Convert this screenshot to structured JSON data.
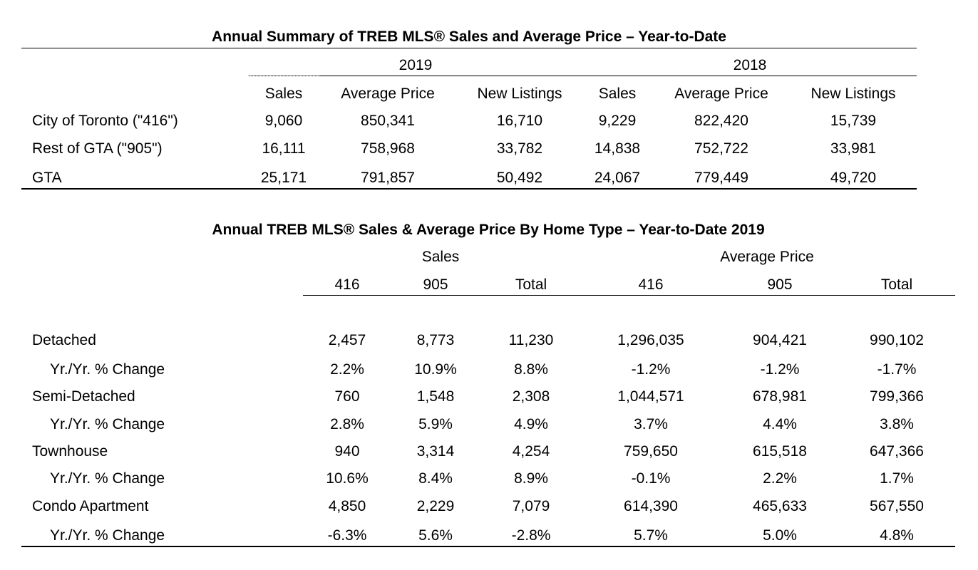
{
  "table1": {
    "title": "Annual Summary of TREB MLS® Sales and Average Price – Year-to-Date",
    "year_headers": [
      "2019",
      "2018"
    ],
    "columns": [
      "Sales",
      "Average Price",
      "New Listings",
      "Sales",
      "Average Price",
      "New Listings"
    ],
    "rows": [
      {
        "label": "City of Toronto (\"416\")",
        "values": [
          "9,060",
          "850,341",
          "16,710",
          "9,229",
          "822,420",
          "15,739"
        ]
      },
      {
        "label": "Rest of GTA (\"905\")",
        "values": [
          "16,111",
          "758,968",
          "33,782",
          "14,838",
          "752,722",
          "33,981"
        ]
      },
      {
        "label": "GTA",
        "values": [
          "25,171",
          "791,857",
          "50,492",
          "24,067",
          "779,449",
          "49,720"
        ]
      }
    ]
  },
  "table2": {
    "title": "Annual TREB MLS® Sales & Average Price  By Home Type – Year-to-Date 2019",
    "group_headers": [
      "Sales",
      "Average Price"
    ],
    "columns": [
      "416",
      "905",
      "Total",
      "416",
      "905",
      "Total"
    ],
    "rows": [
      {
        "label": "Detached",
        "values": [
          "2,457",
          "8,773",
          "11,230",
          "1,296,035",
          "904,421",
          "990,102"
        ]
      },
      {
        "label": "Yr./Yr. % Change",
        "values": [
          "2.2%",
          "10.9%",
          "8.8%",
          "-1.2%",
          "-1.2%",
          "-1.7%"
        ]
      },
      {
        "label": "Semi-Detached",
        "values": [
          "760",
          "1,548",
          "2,308",
          "1,044,571",
          "678,981",
          "799,366"
        ]
      },
      {
        "label": "Yr./Yr. % Change",
        "values": [
          "2.8%",
          "5.9%",
          "4.9%",
          "3.7%",
          "4.4%",
          "3.8%"
        ]
      },
      {
        "label": "Townhouse",
        "values": [
          "940",
          "3,314",
          "4,254",
          "759,650",
          "615,518",
          "647,366"
        ]
      },
      {
        "label": "Yr./Yr. % Change",
        "values": [
          "10.6%",
          "8.4%",
          "8.9%",
          "-0.1%",
          "2.2%",
          "1.7%"
        ]
      },
      {
        "label": "Condo Apartment",
        "values": [
          "4,850",
          "2,229",
          "7,079",
          "614,390",
          "465,633",
          "567,550"
        ]
      },
      {
        "label": "Yr./Yr. % Change",
        "values": [
          "-6.3%",
          "5.6%",
          "-2.8%",
          "5.7%",
          "5.0%",
          "4.8%"
        ]
      }
    ]
  }
}
